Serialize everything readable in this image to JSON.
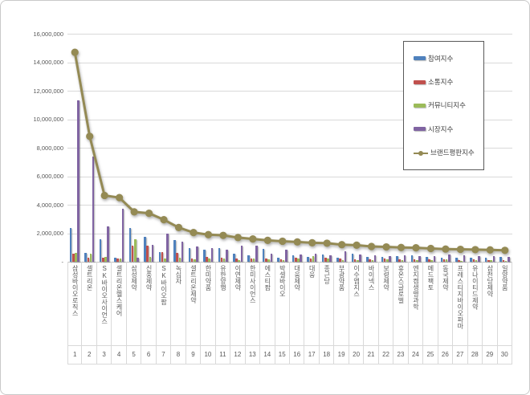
{
  "y_axis": {
    "tick_labels": [
      "16,000,000",
      "14,000,000",
      "12,000,000",
      "10,000,000",
      "8,000,000",
      "6,000,000",
      "4,000,000",
      "2,000,000",
      "-"
    ],
    "tick_values": [
      16000000,
      14000000,
      12000000,
      10000000,
      8000000,
      6000000,
      4000000,
      2000000,
      0
    ]
  },
  "legend": {
    "items": [
      {
        "label": "참여지수",
        "color": "#4F81BD",
        "type": "bar"
      },
      {
        "label": "소통지수",
        "color": "#C0504D",
        "type": "bar"
      },
      {
        "label": "커뮤니티지수",
        "color": "#9BBB59",
        "type": "bar"
      },
      {
        "label": "시장지수",
        "color": "#8064A2",
        "type": "bar"
      },
      {
        "label": "브랜드평판지수",
        "color": "#948A54",
        "type": "line"
      }
    ]
  },
  "chart_data": {
    "type": "bar",
    "title": "",
    "xlabel": "",
    "ylabel": "",
    "ylim": [
      0,
      16000000
    ],
    "grid": true,
    "legend_position": "upper right",
    "categories": [
      "삼성바이오로직스",
      "셀트리온",
      "SK바이오사이언스",
      "셀트리온헬스케어",
      "삼성제약",
      "신풍제약",
      "SK바이오팜",
      "녹십자",
      "셀트리온제약",
      "한미약품",
      "유한양행",
      "이연제약",
      "한미사이언스",
      "에스티팜",
      "박셀바이오",
      "대웅제약",
      "대웅",
      "종근당",
      "부광약품",
      "이수앱지스",
      "바이넥스",
      "보령제약",
      "휴온스글로벌",
      "엔지켐생명과학",
      "메드팩토",
      "동국제약",
      "프레스티지바이오파마",
      "유나이티드제약",
      "삼천당제약",
      "일양약품"
    ],
    "ranks": [
      1,
      2,
      3,
      4,
      5,
      6,
      7,
      8,
      9,
      10,
      11,
      12,
      13,
      14,
      15,
      16,
      17,
      18,
      19,
      20,
      21,
      22,
      23,
      24,
      25,
      26,
      27,
      28,
      29,
      30
    ],
    "series": [
      {
        "name": "참여지수",
        "type": "bar",
        "color": "#4F81BD",
        "values": [
          2350000,
          600000,
          1550000,
          300000,
          2350000,
          1750000,
          650000,
          1500000,
          950000,
          850000,
          950000,
          550000,
          450000,
          900000,
          300000,
          450000,
          350000,
          500000,
          300000,
          550000,
          350000,
          350000,
          400000,
          450000,
          350000,
          300000,
          300000,
          300000,
          300000,
          350000
        ]
      },
      {
        "name": "소통지수",
        "type": "bar",
        "color": "#C0504D",
        "values": [
          550000,
          300000,
          300000,
          250000,
          1100000,
          1100000,
          700000,
          600000,
          200000,
          350000,
          300000,
          200000,
          250000,
          200000,
          150000,
          300000,
          200000,
          300000,
          200000,
          150000,
          150000,
          200000,
          150000,
          150000,
          150000,
          150000,
          100000,
          150000,
          100000,
          100000
        ]
      },
      {
        "name": "커뮤니티지수",
        "type": "bar",
        "color": "#9BBB59",
        "values": [
          600000,
          550000,
          350000,
          200000,
          1550000,
          350000,
          200000,
          300000,
          150000,
          200000,
          250000,
          100000,
          200000,
          150000,
          100000,
          250000,
          400000,
          200000,
          100000,
          100000,
          100000,
          150000,
          100000,
          100000,
          100000,
          150000,
          50000,
          100000,
          100000,
          50000
        ]
      },
      {
        "name": "시장지수",
        "type": "bar",
        "color": "#8064A2",
        "values": [
          11300000,
          7400000,
          2500000,
          3700000,
          300000,
          1200000,
          2000000,
          1400000,
          1050000,
          950000,
          850000,
          1100000,
          1150000,
          550000,
          850000,
          500000,
          550000,
          450000,
          750000,
          500000,
          450000,
          400000,
          450000,
          400000,
          400000,
          500000,
          450000,
          400000,
          400000,
          350000
        ]
      },
      {
        "name": "브랜드평판지수",
        "type": "line",
        "color": "#948A54",
        "values": [
          14700000,
          8800000,
          4650000,
          4500000,
          3500000,
          3400000,
          2950000,
          2400000,
          2050000,
          1900000,
          1850000,
          1700000,
          1600000,
          1500000,
          1440000,
          1390000,
          1330000,
          1300000,
          1200000,
          1160000,
          1070000,
          1040000,
          1000000,
          980000,
          930000,
          890000,
          870000,
          850000,
          830000,
          800000
        ]
      }
    ]
  }
}
